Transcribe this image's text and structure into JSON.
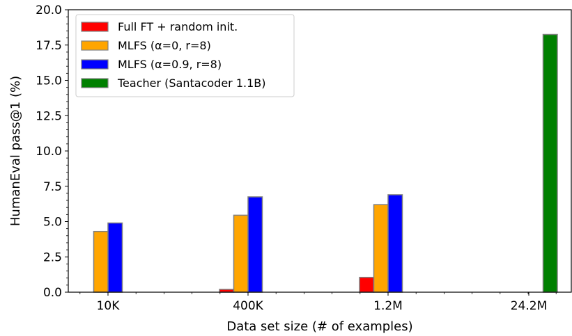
{
  "chart_data": {
    "type": "bar",
    "categories": [
      "10K",
      "400K",
      "1.2M",
      "24.2M"
    ],
    "xlabel": "Data set size (# of examples)",
    "ylabel": "HumanEval pass@1 (%)",
    "ylim": [
      0,
      20
    ],
    "yticks": [
      "0.0",
      "2.5",
      "5.0",
      "7.5",
      "10.0",
      "12.5",
      "15.0",
      "17.5",
      "20.0"
    ],
    "grid": false,
    "legend_position": "top-left",
    "series": [
      {
        "name": "Full FT + random init.",
        "color": "#ff0000",
        "values": [
          0.0,
          0.2,
          1.05,
          0.0
        ]
      },
      {
        "name": "MLFS (α=0, r=8)",
        "color": "#ffa500",
        "values": [
          4.3,
          5.45,
          6.2,
          0.0
        ]
      },
      {
        "name": "MLFS (α=0.9, r=8)",
        "color": "#0000ff",
        "values": [
          4.9,
          6.75,
          6.9,
          0.0
        ]
      },
      {
        "name": "Teacher (Santacoder 1.1B)",
        "color": "#008000",
        "values": [
          0.0,
          0.0,
          0.0,
          18.25
        ]
      }
    ]
  }
}
